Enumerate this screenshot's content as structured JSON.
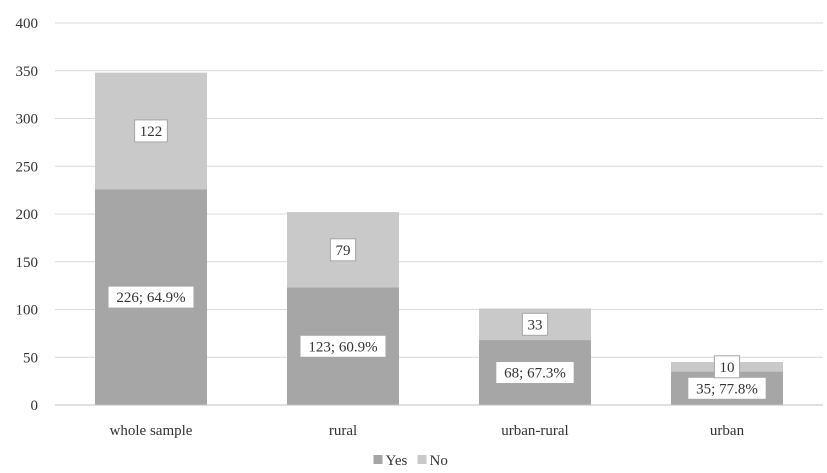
{
  "chart_data": {
    "type": "bar",
    "stacked": true,
    "categories": [
      "whole sample",
      "rural",
      "urban-rural",
      "urban"
    ],
    "series": [
      {
        "name": "Yes",
        "values": [
          226,
          123,
          68,
          35
        ],
        "labels": [
          "226; 64.9%",
          "123; 60.9%",
          "68; 67.3%",
          "35; 77.8%"
        ],
        "color": "#a6a6a6"
      },
      {
        "name": "No",
        "values": [
          122,
          79,
          33,
          10
        ],
        "labels": [
          "122",
          "79",
          "33",
          "10"
        ],
        "color": "#c9c9c9"
      }
    ],
    "yticks": [
      "0",
      "50",
      "100",
      "150",
      "200",
      "250",
      "300",
      "350",
      "400"
    ],
    "ylim": [
      0,
      400
    ],
    "grid": true,
    "legend": "bottom-center",
    "title": "",
    "xlabel": "",
    "ylabel": ""
  }
}
